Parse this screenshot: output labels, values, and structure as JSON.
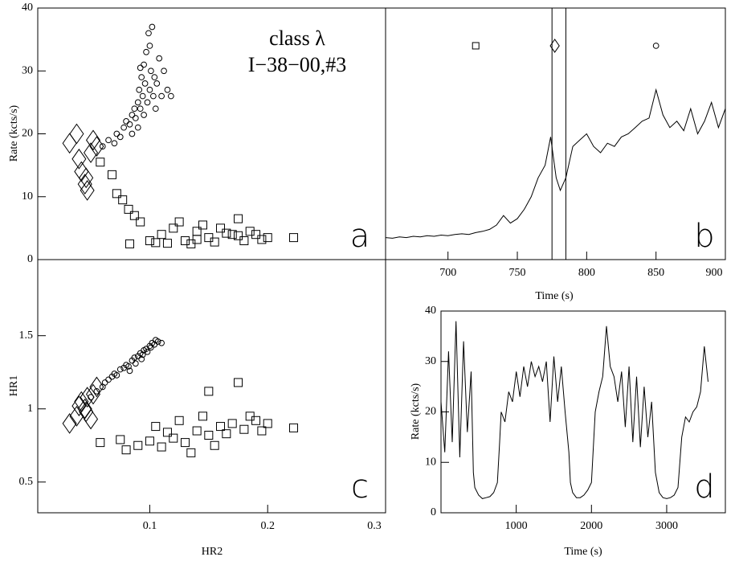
{
  "chart_data": [
    {
      "type": "scatter",
      "ylabel": "Rate (kcts/s)",
      "xlim": [
        0.005,
        0.3
      ],
      "ylim": [
        0,
        40
      ],
      "yticks": [
        0,
        10,
        20,
        30,
        40
      ],
      "annotations": [
        "class λ",
        "I−38−00,#3",
        "a"
      ],
      "series": [
        {
          "marker": "circle",
          "x": [
            0.06,
            0.065,
            0.07,
            0.072,
            0.075,
            0.078,
            0.08,
            0.083,
            0.085,
            0.087,
            0.088,
            0.09,
            0.091,
            0.092,
            0.093,
            0.094,
            0.095,
            0.096,
            0.097,
            0.098,
            0.099,
            0.1,
            0.101,
            0.102,
            0.103,
            0.104,
            0.105,
            0.106,
            0.108,
            0.11,
            0.112,
            0.115,
            0.118,
            0.095,
            0.09,
            0.1,
            0.085,
            0.092
          ],
          "values": [
            18,
            19,
            18.5,
            20,
            19.5,
            21,
            22,
            21.5,
            23,
            24,
            22.5,
            25,
            27,
            24,
            29,
            26,
            31,
            28,
            33,
            25,
            36,
            27,
            30,
            37,
            26,
            29,
            24,
            28,
            32,
            26,
            30,
            27,
            26,
            23,
            21,
            34,
            20,
            30.5
          ]
        },
        {
          "marker": "square",
          "x": [
            0.058,
            0.068,
            0.072,
            0.077,
            0.082,
            0.087,
            0.092,
            0.083,
            0.1,
            0.11,
            0.12,
            0.13,
            0.14,
            0.15,
            0.16,
            0.17,
            0.18,
            0.19,
            0.2,
            0.222,
            0.125,
            0.135,
            0.145,
            0.155,
            0.165,
            0.175,
            0.185,
            0.115,
            0.105,
            0.195,
            0.175,
            0.14
          ],
          "values": [
            15.5,
            13.5,
            10.5,
            9.5,
            8,
            7,
            6,
            2.5,
            3,
            4,
            5,
            3,
            4.5,
            3.5,
            5,
            4,
            3,
            4,
            3.5,
            3.5,
            6,
            2.5,
            5.5,
            2.8,
            4.2,
            3.8,
            4.5,
            2.6,
            2.7,
            3.2,
            6.5,
            3.2
          ]
        },
        {
          "marker": "diamond",
          "x": [
            0.032,
            0.038,
            0.04,
            0.042,
            0.045,
            0.047,
            0.05,
            0.052,
            0.055,
            0.046
          ],
          "values": [
            18.5,
            20,
            16,
            14,
            12,
            11,
            17,
            19,
            18,
            13
          ]
        }
      ]
    },
    {
      "type": "line",
      "xlabel": "Time (s)",
      "xlim": [
        655,
        900
      ],
      "ylim": [
        0,
        40
      ],
      "xticks": [
        700,
        750,
        800,
        850,
        900
      ],
      "annotations": [
        "b"
      ],
      "vlines": [
        775,
        785
      ],
      "symbols": [
        {
          "marker": "square",
          "x": 720,
          "y": 34
        },
        {
          "marker": "diamond",
          "x": 777,
          "y": 34
        },
        {
          "marker": "circle",
          "x": 850,
          "y": 34
        }
      ],
      "x": [
        655,
        660,
        665,
        670,
        675,
        680,
        685,
        690,
        695,
        700,
        705,
        710,
        715,
        720,
        725,
        730,
        735,
        740,
        745,
        750,
        755,
        760,
        765,
        770,
        774,
        778,
        781,
        785,
        790,
        795,
        800,
        805,
        810,
        815,
        820,
        825,
        830,
        835,
        840,
        845,
        850,
        855,
        860,
        865,
        870,
        875,
        880,
        885,
        890,
        895,
        900
      ],
      "values": [
        3.5,
        3.4,
        3.6,
        3.5,
        3.7,
        3.6,
        3.8,
        3.7,
        3.9,
        3.8,
        4.0,
        4.1,
        4.0,
        4.3,
        4.5,
        4.8,
        5.5,
        7,
        5.8,
        6.5,
        8,
        10,
        13,
        15,
        19.5,
        13,
        11,
        13,
        18,
        19,
        20,
        18,
        17,
        18.5,
        18,
        19.5,
        20,
        21,
        22,
        22.5,
        27,
        23,
        21,
        22,
        20.5,
        24,
        20,
        22,
        25,
        21,
        24
      ]
    },
    {
      "type": "scatter",
      "ylabel": "HR1",
      "xlabel": "HR2",
      "xlim": [
        0.005,
        0.3
      ],
      "ylim": [
        0.29,
        2.02
      ],
      "xticks": [
        0.1,
        0.2,
        0.3
      ],
      "yticks": [
        0.5,
        1,
        1.5
      ],
      "annotations": [
        "c"
      ],
      "series": [
        {
          "marker": "circle",
          "x": [
            0.05,
            0.055,
            0.06,
            0.062,
            0.065,
            0.068,
            0.07,
            0.072,
            0.075,
            0.078,
            0.08,
            0.082,
            0.085,
            0.087,
            0.09,
            0.092,
            0.094,
            0.095,
            0.097,
            0.098,
            0.1,
            0.101,
            0.102,
            0.104,
            0.105,
            0.107,
            0.11,
            0.088,
            0.093,
            0.083
          ],
          "values": [
            1.08,
            1.12,
            1.15,
            1.18,
            1.2,
            1.22,
            1.24,
            1.23,
            1.27,
            1.28,
            1.3,
            1.29,
            1.33,
            1.35,
            1.36,
            1.38,
            1.37,
            1.4,
            1.41,
            1.39,
            1.43,
            1.42,
            1.45,
            1.44,
            1.47,
            1.46,
            1.45,
            1.31,
            1.34,
            1.26
          ]
        },
        {
          "marker": "square",
          "x": [
            0.058,
            0.075,
            0.08,
            0.09,
            0.1,
            0.11,
            0.12,
            0.13,
            0.14,
            0.15,
            0.16,
            0.17,
            0.18,
            0.19,
            0.2,
            0.222,
            0.175,
            0.15,
            0.125,
            0.135,
            0.145,
            0.155,
            0.165,
            0.185,
            0.115,
            0.105,
            0.195
          ],
          "values": [
            0.77,
            0.79,
            0.72,
            0.75,
            0.78,
            0.74,
            0.8,
            0.77,
            0.85,
            0.82,
            0.88,
            0.9,
            0.86,
            0.92,
            0.9,
            0.87,
            1.18,
            1.12,
            0.92,
            0.7,
            0.95,
            0.75,
            0.83,
            0.95,
            0.84,
            0.88,
            0.85
          ]
        },
        {
          "marker": "diamond",
          "x": [
            0.032,
            0.038,
            0.04,
            0.042,
            0.045,
            0.047,
            0.05,
            0.052,
            0.046,
            0.055
          ],
          "values": [
            0.9,
            0.95,
            1.02,
            1.05,
            1.0,
            1.08,
            0.93,
            1.1,
            0.98,
            1.15
          ]
        }
      ]
    },
    {
      "type": "line",
      "ylabel": "Rate (kcts/s)",
      "xlabel": "Time (s)",
      "xlim": [
        0,
        3780
      ],
      "ylim": [
        0,
        40
      ],
      "xticks": [
        1000,
        2000,
        3000
      ],
      "yticks": [
        0,
        10,
        20,
        30,
        40
      ],
      "annotations": [
        "d"
      ],
      "x": [
        0,
        50,
        100,
        150,
        200,
        250,
        300,
        350,
        400,
        430,
        450,
        500,
        550,
        600,
        650,
        700,
        750,
        780,
        800,
        850,
        900,
        950,
        1000,
        1050,
        1100,
        1150,
        1200,
        1250,
        1300,
        1350,
        1400,
        1450,
        1500,
        1550,
        1600,
        1650,
        1700,
        1720,
        1750,
        1800,
        1850,
        1900,
        1950,
        2000,
        2050,
        2100,
        2150,
        2200,
        2250,
        2300,
        2350,
        2400,
        2450,
        2500,
        2550,
        2600,
        2650,
        2700,
        2750,
        2800,
        2850,
        2900,
        2950,
        3000,
        3050,
        3100,
        3150,
        3200,
        3250,
        3300,
        3350,
        3400,
        3450,
        3500,
        3550
      ],
      "values": [
        22,
        12,
        32,
        14,
        38,
        11,
        34,
        16,
        28,
        8,
        5,
        3.5,
        2.8,
        3,
        3.2,
        4,
        6,
        14,
        20,
        18,
        24,
        22,
        28,
        23,
        29,
        25,
        30,
        27,
        29,
        26,
        30,
        18,
        31,
        22,
        29,
        20,
        12,
        6,
        4,
        3,
        3,
        3.5,
        4.5,
        6,
        20,
        24,
        27,
        37,
        29,
        27,
        22,
        28,
        17,
        29,
        14,
        27,
        13,
        25,
        15,
        22,
        8,
        4,
        3,
        2.8,
        3,
        3.5,
        5,
        15,
        19,
        18,
        20,
        21,
        24,
        33,
        26
      ]
    }
  ]
}
